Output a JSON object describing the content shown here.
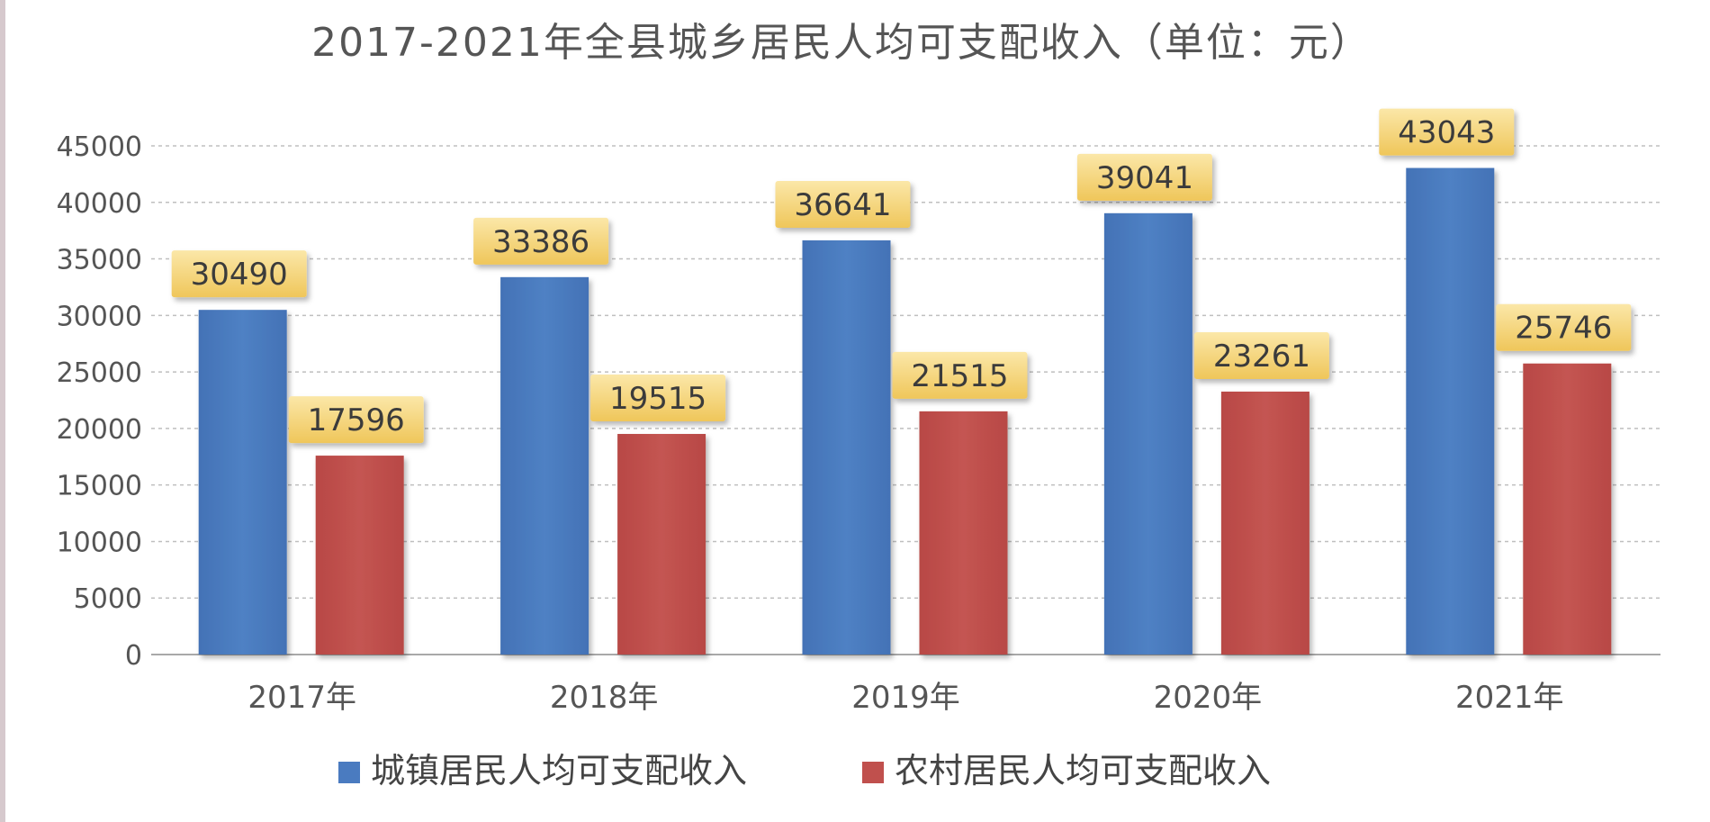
{
  "chart_data": {
    "type": "bar",
    "title": "2017-2021年全县城乡居民人均可支配收入（单位：元）",
    "categories": [
      "2017年",
      "2018年",
      "2019年",
      "2020年",
      "2021年"
    ],
    "series": [
      {
        "name": "城镇居民人均可支配收入",
        "color": "#4a7bc0",
        "values": [
          30490,
          33386,
          36641,
          39041,
          43043
        ]
      },
      {
        "name": "农村居民人均可支配收入",
        "color": "#c0504d",
        "values": [
          17596,
          19515,
          21515,
          23261,
          25746
        ]
      }
    ],
    "yticks": [
      "0",
      "5000",
      "10000",
      "15000",
      "20000",
      "25000",
      "30000",
      "35000",
      "40000",
      "45000"
    ],
    "ylim": [
      0,
      45000
    ],
    "grid": true,
    "legend_position": "bottom",
    "data_labels": true,
    "label_color": "#f2cf6a"
  }
}
